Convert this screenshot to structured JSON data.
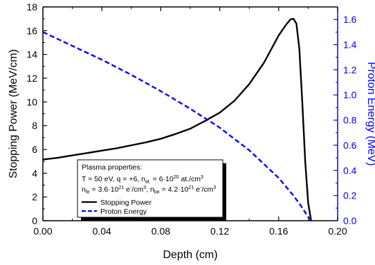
{
  "chart_data": {
    "type": "line",
    "xlabel": "Depth (cm)",
    "ylabel": "Stopping Power (MeV/cm)",
    "y2label": "Proton Energy (MeV)",
    "xlim": [
      0,
      0.2
    ],
    "ylim": [
      0,
      18
    ],
    "y2lim": [
      0,
      1.7
    ],
    "x_ticks": [
      "0.00",
      "0.04",
      "0.08",
      "0.12",
      "0.16",
      "0.20"
    ],
    "y_ticks": [
      "0",
      "2",
      "4",
      "6",
      "8",
      "10",
      "12",
      "14",
      "16",
      "18"
    ],
    "y2_ticks": [
      "0.0",
      "0.2",
      "0.4",
      "0.6",
      "0.8",
      "1.0",
      "1.2",
      "1.4",
      "1.6"
    ],
    "grid": false,
    "legend_position": "bottom-center",
    "colors": {
      "stopping": "#000000",
      "energy": "#0000ff",
      "right_axis": "#0000ff"
    },
    "legend": {
      "header": "Plasma properties:",
      "line1": {
        "prefix": "T = 50 eV, q = +6, n",
        "sub1": "at.",
        "mid": " = 6·10",
        "sup1": "20",
        "suffix": " at./cm",
        "sup2": "3"
      },
      "line2": {
        "a": "n",
        "sub_fe": "fe",
        "b": " = 3.6·10",
        "sup_a": "21",
        "c": " e",
        "sup_b": "-",
        "d": "/cm",
        "sup_c": "3",
        "e": ", n",
        "sub_be": "be",
        "f": " = 4.2·10",
        "sup_d": "21",
        "g": " e",
        "sup_e": "-",
        "h": "/cm",
        "sup_f": "3"
      }
    },
    "series": [
      {
        "name": "Stopping Power",
        "axis": "left",
        "style": "solid",
        "x": [
          0.0,
          0.01,
          0.02,
          0.03,
          0.04,
          0.05,
          0.06,
          0.07,
          0.08,
          0.09,
          0.1,
          0.11,
          0.12,
          0.13,
          0.14,
          0.15,
          0.16,
          0.165,
          0.168,
          0.17,
          0.172,
          0.174,
          0.176,
          0.178,
          0.18,
          0.182
        ],
        "values": [
          5.15,
          5.3,
          5.5,
          5.7,
          5.9,
          6.1,
          6.35,
          6.6,
          6.9,
          7.3,
          7.75,
          8.4,
          9.1,
          10.1,
          11.5,
          13.3,
          15.6,
          16.5,
          16.95,
          17.0,
          16.6,
          14.5,
          10.0,
          5.0,
          1.5,
          0.0
        ]
      },
      {
        "name": "Proton Energy",
        "axis": "right",
        "style": "dashed",
        "x": [
          0.0,
          0.02,
          0.04,
          0.06,
          0.08,
          0.1,
          0.12,
          0.14,
          0.16,
          0.17,
          0.175,
          0.18,
          0.182
        ],
        "values": [
          1.5,
          1.39,
          1.28,
          1.16,
          1.03,
          0.89,
          0.74,
          0.56,
          0.34,
          0.2,
          0.12,
          0.03,
          0.0
        ]
      }
    ]
  }
}
